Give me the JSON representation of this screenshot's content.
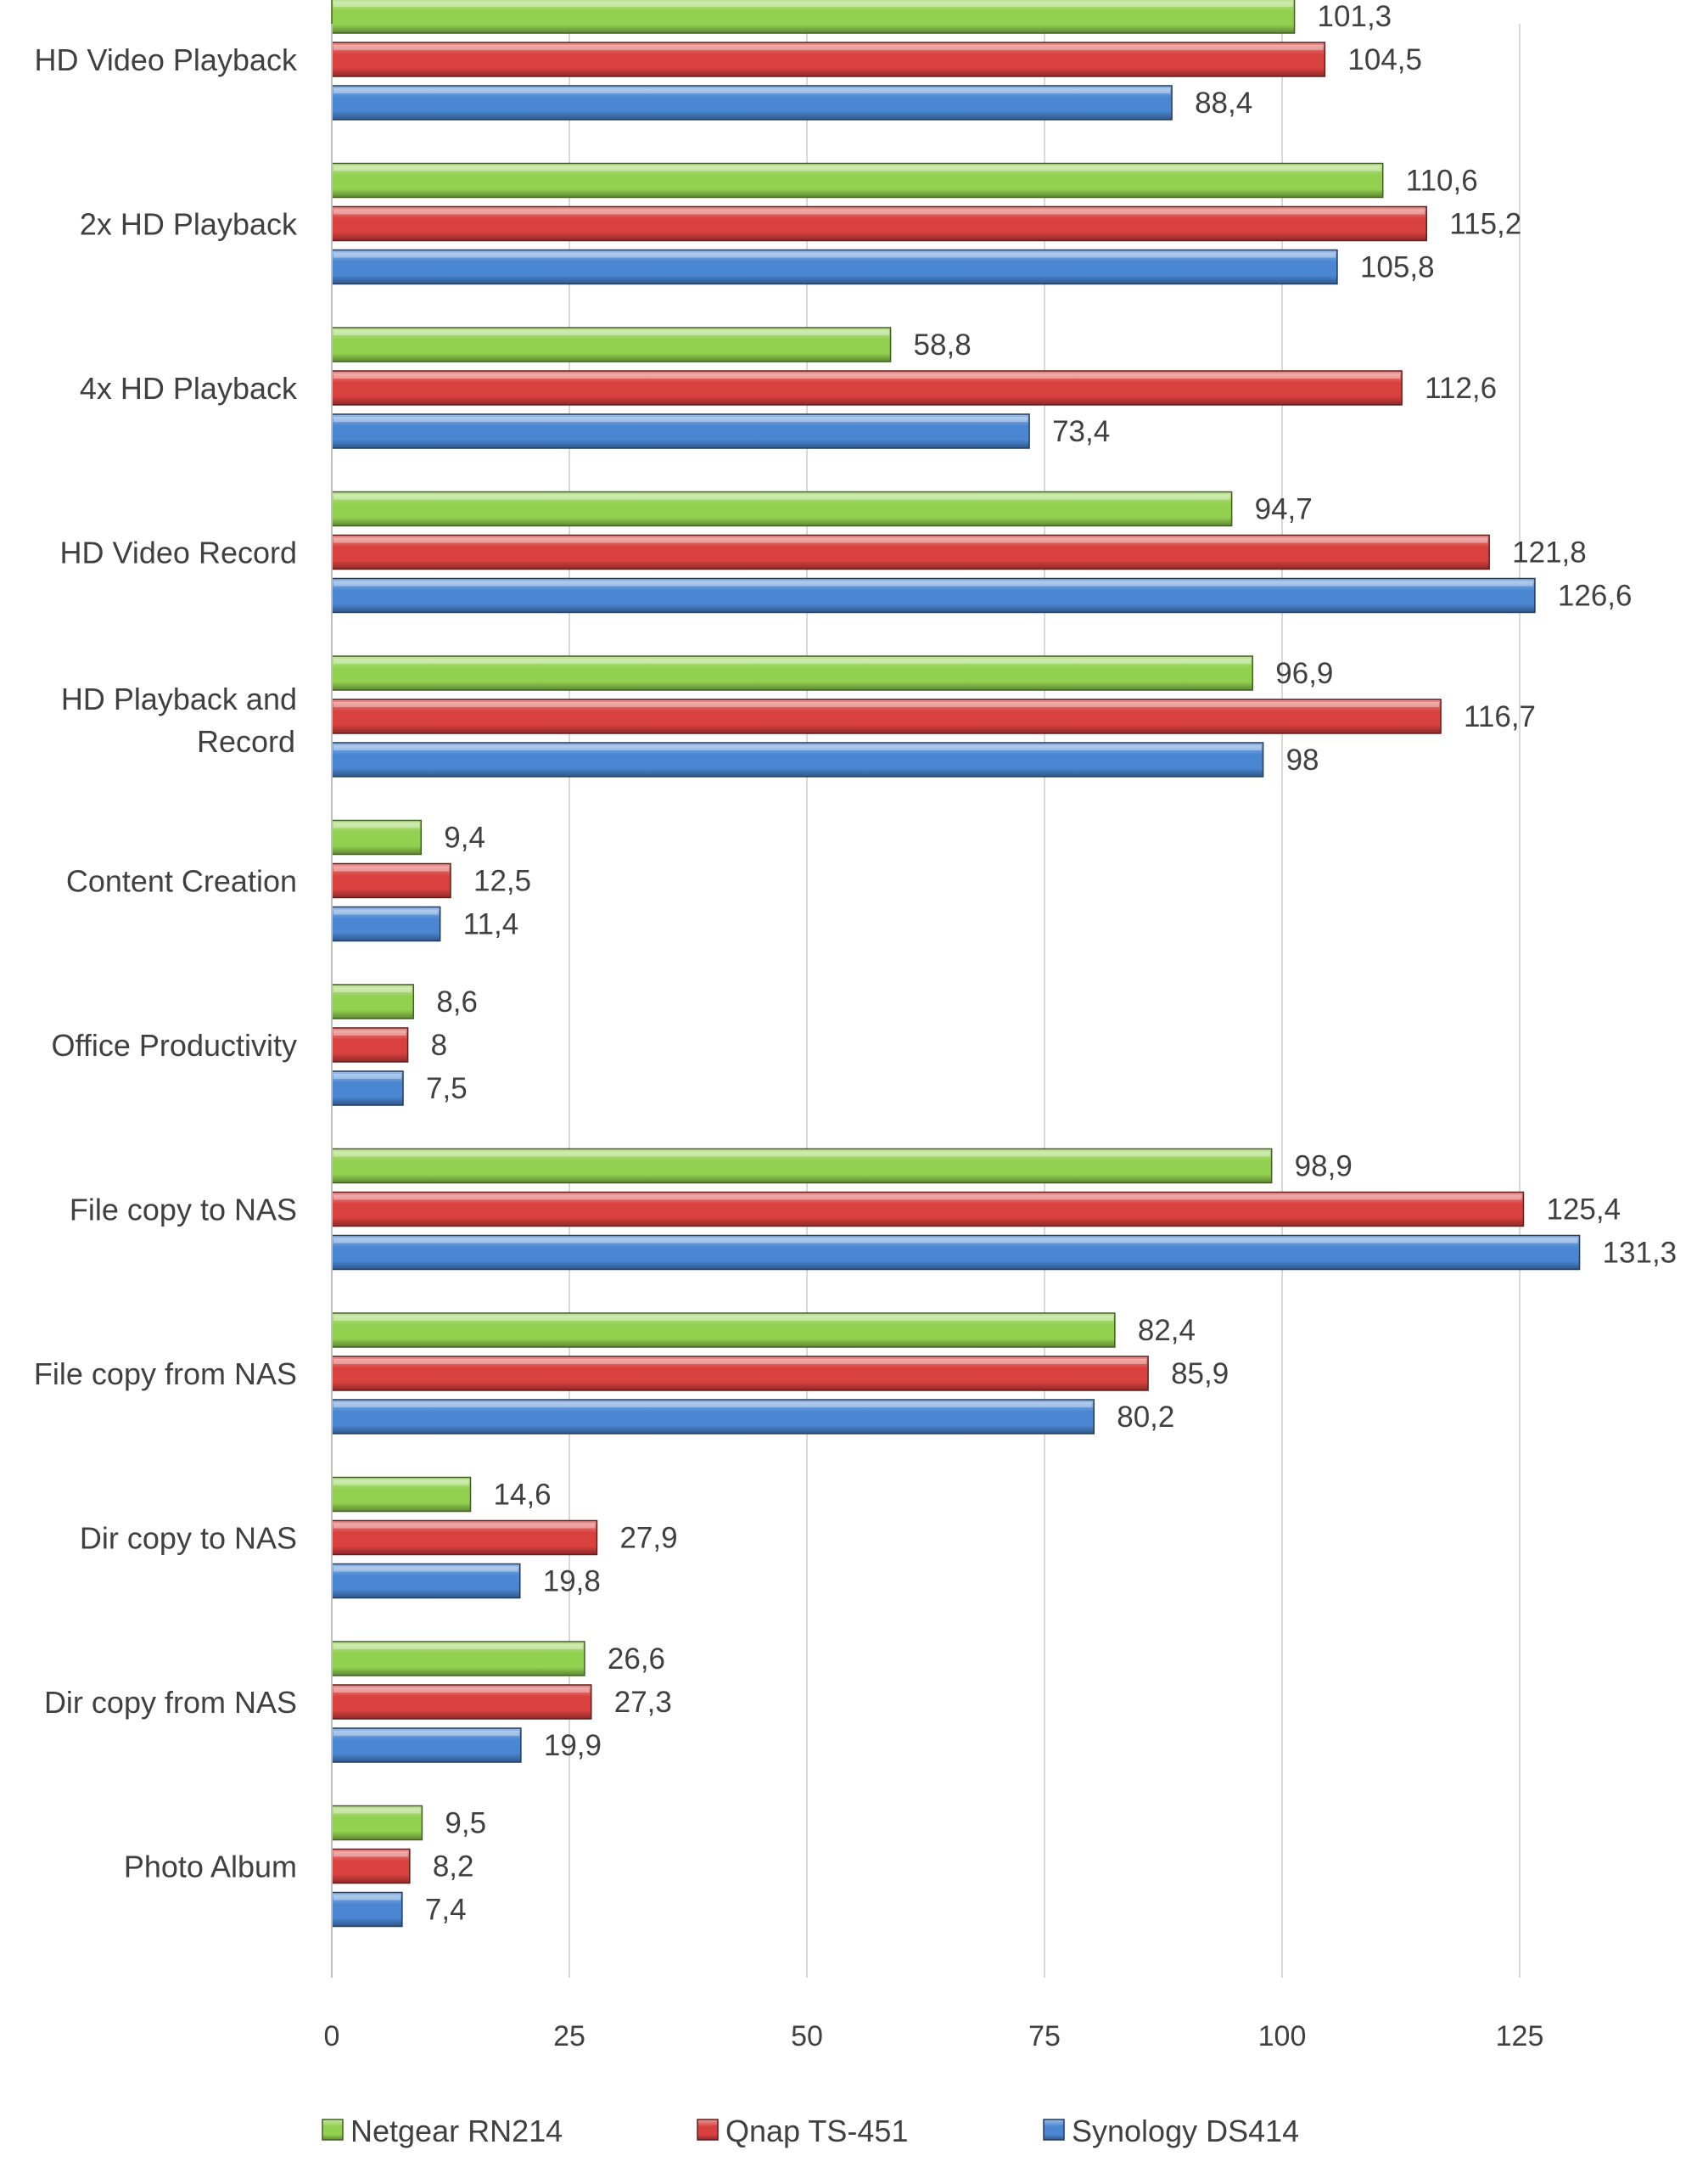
{
  "chart_data": {
    "type": "bar",
    "orientation": "horizontal",
    "categories": [
      "HD Video Playback",
      "2x HD Playback",
      "4x HD Playback",
      "HD Video Record",
      "HD Playback and Record",
      "Content Creation",
      "Office Productivity",
      "File copy to NAS",
      "File copy from NAS",
      "Dir copy to NAS",
      "Dir copy from NAS",
      "Photo Album"
    ],
    "series": [
      {
        "name": "Netgear RN214",
        "color": "#92D050",
        "values": [
          101.3,
          110.6,
          58.8,
          94.7,
          96.9,
          9.4,
          8.6,
          98.9,
          82.4,
          14.6,
          26.6,
          9.5
        ],
        "labels": [
          "101,3",
          "110,6",
          "58,8",
          "94,7",
          "96,9",
          "9,4",
          "8,6",
          "98,9",
          "82,4",
          "14,6",
          "26,6",
          "9,5"
        ]
      },
      {
        "name": "Qnap TS-451",
        "color": "#D9413F",
        "values": [
          104.5,
          115.2,
          112.6,
          121.8,
          116.7,
          12.5,
          8,
          125.4,
          85.9,
          27.9,
          27.3,
          8.2
        ],
        "labels": [
          "104,5",
          "115,2",
          "112,6",
          "121,8",
          "116,7",
          "12,5",
          "8",
          "125,4",
          "85,9",
          "27,9",
          "27,3",
          "8,2"
        ]
      },
      {
        "name": "Synology DS414",
        "color": "#4A86D2",
        "values": [
          88.4,
          105.8,
          73.4,
          126.6,
          98,
          11.4,
          7.5,
          131.3,
          80.2,
          19.8,
          19.9,
          7.4
        ],
        "labels": [
          "88,4",
          "105,8",
          "73,4",
          "126,6",
          "98",
          "11,4",
          "7,5",
          "131,3",
          "80,2",
          "19,8",
          "19,9",
          "7,4"
        ]
      }
    ],
    "xticks": [
      0,
      25,
      50,
      75,
      100,
      125
    ],
    "xlim": [
      0,
      140
    ],
    "grid": "vertical",
    "legend": "bottom",
    "title": "",
    "xlabel": "",
    "ylabel": ""
  }
}
